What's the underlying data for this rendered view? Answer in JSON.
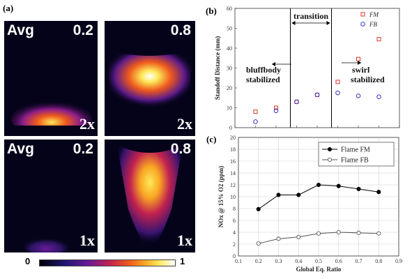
{
  "panel_a": {
    "label": "(a)",
    "images": [
      {
        "tl": "Avg",
        "tr": "0.2",
        "br": "2x"
      },
      {
        "tl": "",
        "tr": "0.8",
        "br": "2x"
      },
      {
        "tl": "Avg",
        "tr": "0.2",
        "br": "1x"
      },
      {
        "tl": "",
        "tr": "0.8",
        "br": "1x"
      }
    ],
    "colorbar": {
      "min": "0",
      "max": "1"
    }
  },
  "panel_b": {
    "label": "(b)",
    "annotations": {
      "transition": "transition",
      "left_line1": "bluffbody",
      "left_line2": "stabilized",
      "right_line1": "swirl",
      "right_line2": "stabilized"
    }
  },
  "panel_c": {
    "label": "(c)"
  },
  "chart_data": [
    {
      "type": "scatter",
      "ylabel": "Standoff Distance (mm)",
      "xlabel": "",
      "ylim": [
        0,
        60
      ],
      "yticks": [
        "0",
        "10",
        "20",
        "30",
        "40",
        "50",
        "60"
      ],
      "xlim": [
        0.1,
        0.9
      ],
      "series": [
        {
          "name": "FM",
          "color": "#d9342b",
          "marker": "square",
          "x": [
            0.2,
            0.3,
            0.4,
            0.5,
            0.6,
            0.7,
            0.8
          ],
          "y": [
            8,
            10,
            13,
            16.5,
            23,
            34.5,
            44.5
          ]
        },
        {
          "name": "FB",
          "color": "#3535c4",
          "marker": "circle",
          "x": [
            0.2,
            0.3,
            0.4,
            0.5,
            0.6,
            0.7,
            0.8
          ],
          "y": [
            3,
            8.5,
            13,
            16.5,
            17.5,
            16,
            15.5
          ]
        }
      ],
      "vlines": [
        0.4,
        0.6
      ]
    },
    {
      "type": "line",
      "xlabel": "Global Eq. Ratio",
      "ylabel": "NOx @ 15% O2 (ppm)",
      "xlim": [
        0.1,
        0.9
      ],
      "ylim": [
        0,
        20
      ],
      "xticks": [
        "0.1",
        "0.2",
        "0.3",
        "0.4",
        "0.5",
        "0.6",
        "0.7",
        "0.8",
        "0.9"
      ],
      "yticks": [
        "0",
        "2",
        "4",
        "6",
        "8",
        "10",
        "12",
        "14",
        "16",
        "18",
        "20"
      ],
      "series": [
        {
          "name": "Flame FM",
          "filled": true,
          "x": [
            0.2,
            0.3,
            0.4,
            0.5,
            0.6,
            0.7,
            0.8
          ],
          "y": [
            7.9,
            10.3,
            10.3,
            12.0,
            11.8,
            11.3,
            10.8
          ]
        },
        {
          "name": "Flame FB",
          "filled": false,
          "x": [
            0.2,
            0.3,
            0.4,
            0.5,
            0.6,
            0.7,
            0.8
          ],
          "y": [
            2.1,
            2.9,
            3.2,
            3.8,
            4.0,
            3.9,
            3.8
          ]
        }
      ]
    }
  ]
}
